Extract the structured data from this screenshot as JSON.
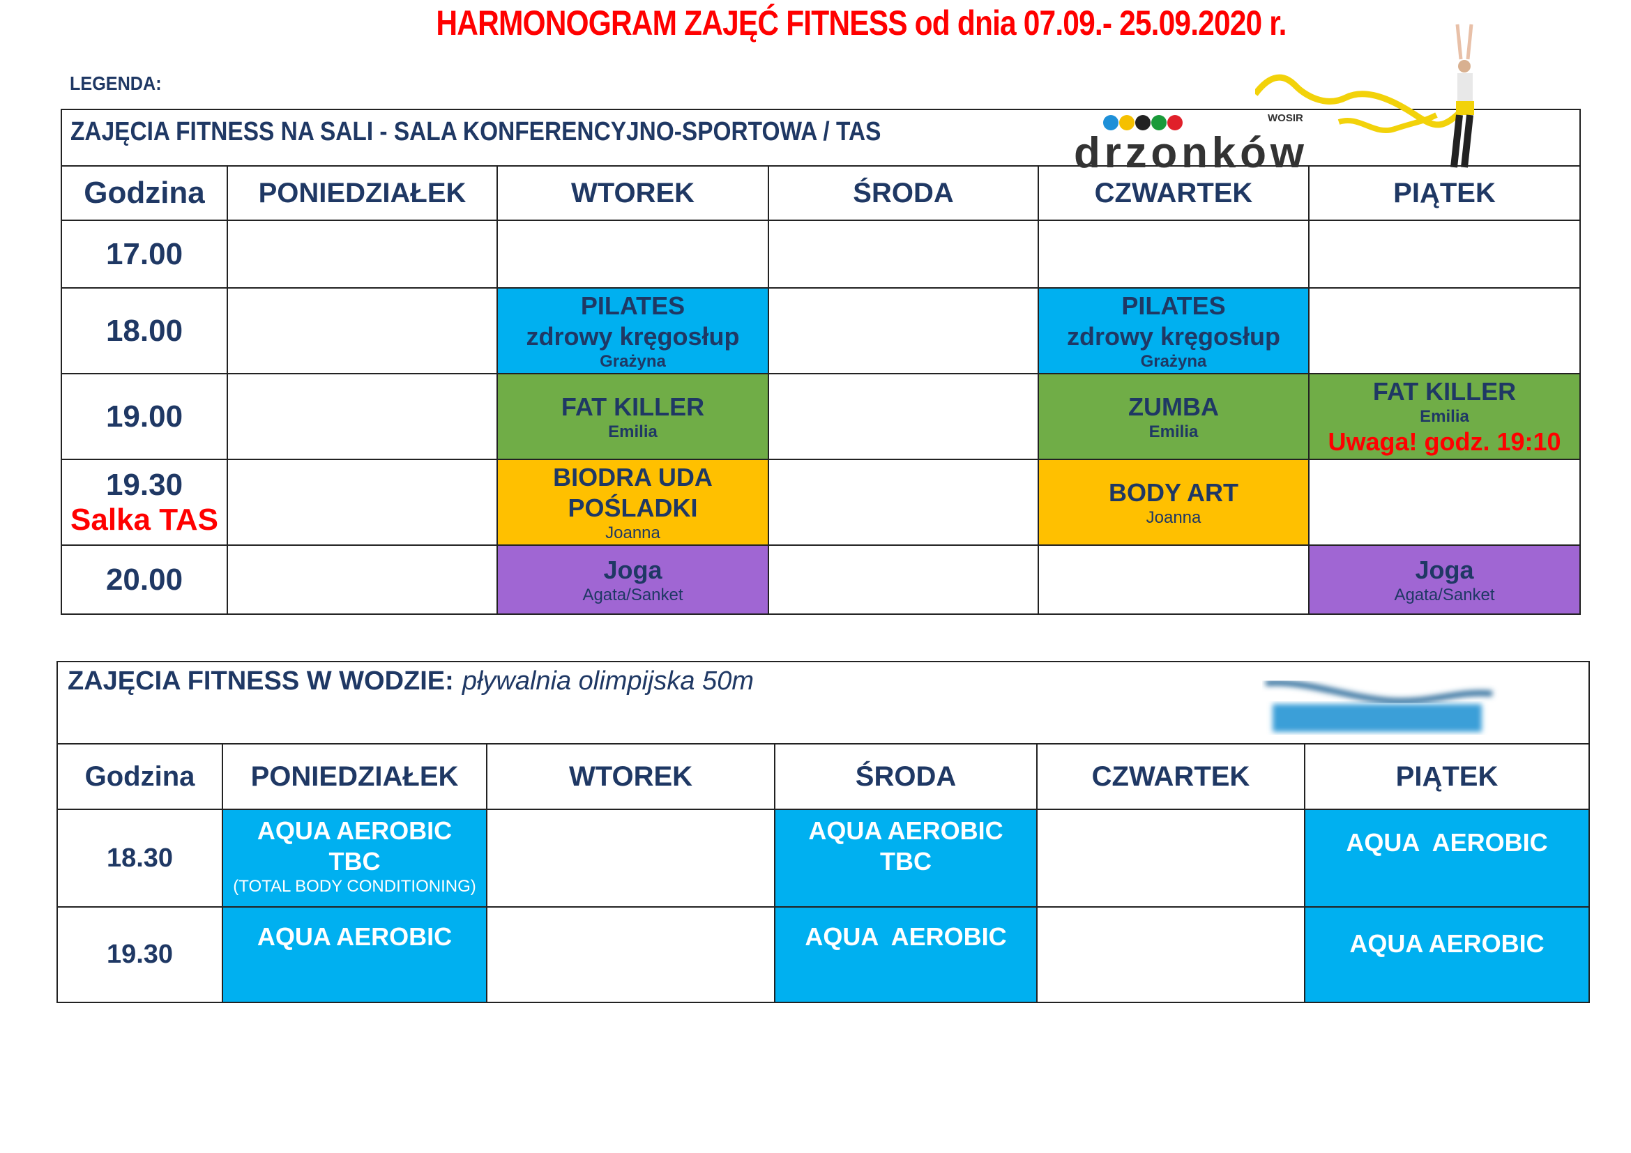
{
  "title": "HARMONOGRAM ZAJĘĆ FITNESS od dnia 07.09.- 25.09.2020 r.",
  "legend": "LEGENDA:",
  "logo": {
    "text": "drzonków",
    "sub": "WOSIR",
    "dots": [
      "#1e90d8",
      "#f5c000",
      "#222222",
      "#1a9a3a",
      "#e0202a"
    ]
  },
  "colors": {
    "blue": "#00b0f0",
    "green": "#70ad47",
    "orange": "#ffc000",
    "purple": "#a066d3",
    "title_red": "#ff0000",
    "text": "#1f3864"
  },
  "hall": {
    "header": "ZAJĘCIA FITNESS NA SALI - SALA KONFERENCYJNO-SPORTOWA / TAS",
    "columns": [
      "Godzina",
      "PONIEDZIAŁEK",
      "WTOREK",
      "ŚRODA",
      "CZWARTEK",
      "PIĄTEK"
    ],
    "rows": [
      {
        "time": "17.00"
      },
      {
        "time": "18.00",
        "tue": {
          "l1": "PILATES",
          "l2": "zdrowy kręgosłup",
          "l3": "Grażyna"
        },
        "thu": {
          "l1": "PILATES",
          "l2": "zdrowy kręgosłup",
          "l3": "Grażyna"
        }
      },
      {
        "time": "19.00",
        "tue": {
          "l1": "FAT KILLER",
          "l2": "Emilia"
        },
        "thu": {
          "l1": "ZUMBA",
          "l2": "Emilia"
        },
        "fri": {
          "l1": "FAT KILLER",
          "l2": "Emilia",
          "note": "Uwaga! godz. 19:10"
        }
      },
      {
        "time": "19.30",
        "room": "Salka TAS",
        "tue": {
          "l1": "BIODRA UDA",
          "l2": "POŚLADKI",
          "l3": "Joanna"
        },
        "thu": {
          "l1": "BODY ART",
          "l2": "Joanna"
        }
      },
      {
        "time": "20.00",
        "tue": {
          "l1": "Joga",
          "l2": "Agata/Sanket"
        },
        "fri": {
          "l1": "Joga",
          "l2": "Agata/Sanket"
        }
      }
    ]
  },
  "pool": {
    "header": "ZAJĘCIA FITNESS W WODZIE:",
    "subheader": "pływalnia olimpijska 50m",
    "columns": [
      "Godzina",
      "PONIEDZIAŁEK",
      "WTOREK",
      "ŚRODA",
      "CZWARTEK",
      "PIĄTEK"
    ],
    "rows": [
      {
        "time": "18.30",
        "mon": {
          "l1": "AQUA AEROBIC",
          "l2": "TBC",
          "l3": "(TOTAL BODY CONDITIONING)"
        },
        "wed": {
          "l1": "AQUA AEROBIC",
          "l2": "TBC"
        },
        "fri": {
          "l1": "AQUA  AEROBIC"
        }
      },
      {
        "time": "19.30",
        "mon": {
          "l1": "AQUA AEROBIC"
        },
        "wed": {
          "l1": "AQUA  AEROBIC"
        },
        "fri": {
          "l1": "AQUA AEROBIC"
        }
      }
    ]
  }
}
